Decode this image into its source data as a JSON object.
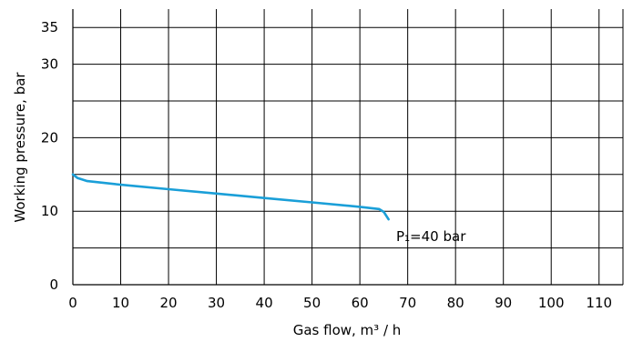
{
  "chart_data": {
    "type": "line",
    "title": "",
    "xlabel": "Gas flow, m³ / h",
    "ylabel": "Working pressure, bar",
    "xlim": [
      0,
      115
    ],
    "ylim": [
      0,
      37.5
    ],
    "x_ticks": [
      0,
      10,
      20,
      30,
      40,
      50,
      60,
      70,
      80,
      90,
      100,
      110
    ],
    "y_ticks": [
      0,
      10,
      20,
      30,
      35
    ],
    "grid": true,
    "annotation": "P₁=40 bar",
    "line_color": "#1a9fd8",
    "series": [
      {
        "x": [
          0,
          1,
          3,
          10,
          20,
          30,
          40,
          50,
          60,
          64,
          65,
          66
        ],
        "y": [
          15.0,
          14.5,
          14.1,
          13.6,
          13.0,
          12.4,
          11.8,
          11.2,
          10.6,
          10.3,
          9.9,
          8.9
        ]
      }
    ]
  }
}
